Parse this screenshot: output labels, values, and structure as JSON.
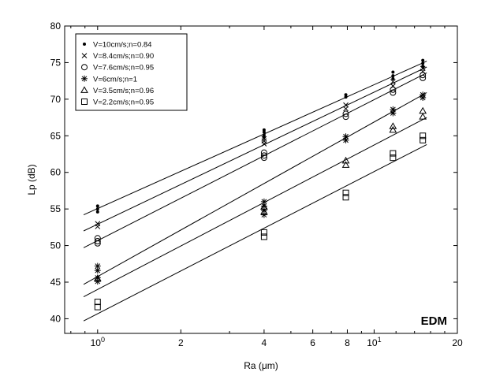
{
  "chart_data": {
    "type": "scatter",
    "title": "",
    "xlabel": "Ra (μm)",
    "ylabel": "Lp (dB)",
    "xscale": "log",
    "xlim": [
      0.76,
      20
    ],
    "ylim": [
      38,
      80
    ],
    "annotation": "EDM",
    "legend_position": "top-left",
    "x_ticks": [
      {
        "value": 1,
        "base": "10",
        "exp": "0"
      },
      {
        "value": 2,
        "label": "2"
      },
      {
        "value": 4,
        "label": "4"
      },
      {
        "value": 6,
        "label": "6"
      },
      {
        "value": 8,
        "label": "8"
      },
      {
        "value": 10,
        "base": "10",
        "exp": "1"
      },
      {
        "value": 20,
        "label": "20"
      }
    ],
    "y_ticks": [
      "40",
      "45",
      "50",
      "55",
      "60",
      "65",
      "70",
      "75",
      "80"
    ],
    "series": [
      {
        "name": "V=10cm/s;n=0.84",
        "marker": "dot",
        "fit": {
          "x": [
            0.89,
            15.5
          ],
          "y": [
            54.2,
            75.2
          ]
        },
        "points": [
          [
            1,
            55.0
          ],
          [
            1,
            55.4
          ],
          [
            1,
            54.6
          ],
          [
            4,
            65.1
          ],
          [
            4,
            65.5
          ],
          [
            4,
            65.8
          ],
          [
            4,
            64.8
          ],
          [
            7.9,
            70.6
          ],
          [
            7.9,
            70.3
          ],
          [
            11.7,
            73.7
          ],
          [
            11.7,
            73.2
          ],
          [
            11.7,
            72.8
          ],
          [
            15,
            75.3
          ],
          [
            15,
            74.9
          ],
          [
            15,
            74.5
          ]
        ]
      },
      {
        "name": "V=8.4cm/s;n=0.90",
        "marker": "x",
        "fit": {
          "x": [
            0.89,
            15.5
          ],
          "y": [
            52.0,
            74.4
          ]
        },
        "points": [
          [
            1,
            53.0
          ],
          [
            1,
            52.6
          ],
          [
            4,
            64.3
          ],
          [
            4,
            63.9
          ],
          [
            4,
            64.6
          ],
          [
            7.9,
            69.2
          ],
          [
            7.9,
            68.7
          ],
          [
            11.7,
            72.4
          ],
          [
            11.7,
            71.8
          ],
          [
            15,
            74.2
          ],
          [
            15,
            73.8
          ]
        ]
      },
      {
        "name": "V=7.6cm/s;n=0.95",
        "marker": "circle",
        "fit": {
          "x": [
            0.89,
            15.5
          ],
          "y": [
            49.7,
            73.6
          ]
        },
        "points": [
          [
            1,
            50.6
          ],
          [
            1,
            51.0
          ],
          [
            1,
            50.3
          ],
          [
            4,
            62.7
          ],
          [
            4,
            62.3
          ],
          [
            4,
            62.0
          ],
          [
            7.9,
            68.0
          ],
          [
            7.9,
            67.6
          ],
          [
            11.7,
            71.3
          ],
          [
            11.7,
            70.9
          ],
          [
            15,
            73.3
          ],
          [
            15,
            72.9
          ]
        ]
      },
      {
        "name": "V=6cm/s;n=1",
        "marker": "star",
        "fit": {
          "x": [
            0.89,
            15.5
          ],
          "y": [
            44.7,
            70.9
          ]
        },
        "points": [
          [
            1,
            47.2
          ],
          [
            1,
            46.6
          ],
          [
            1,
            45.6
          ],
          [
            1,
            45.1
          ],
          [
            4,
            56.0
          ],
          [
            4,
            55.4
          ],
          [
            4,
            54.8
          ],
          [
            4,
            54.2
          ],
          [
            7.9,
            64.9
          ],
          [
            7.9,
            64.4
          ],
          [
            11.7,
            68.6
          ],
          [
            11.7,
            68.1
          ],
          [
            15,
            70.6
          ],
          [
            15,
            70.2
          ]
        ]
      },
      {
        "name": "V=3.5cm/s;n=0.96",
        "marker": "triangle",
        "fit": {
          "x": [
            0.89,
            15.5
          ],
          "y": [
            43.0,
            67.5
          ]
        },
        "points": [
          [
            1,
            45.5
          ],
          [
            4,
            55.3
          ],
          [
            4,
            54.6
          ],
          [
            7.9,
            61.6
          ],
          [
            7.9,
            61.0
          ],
          [
            11.7,
            66.3
          ],
          [
            11.7,
            65.8
          ],
          [
            15,
            68.4
          ],
          [
            15,
            67.6
          ]
        ]
      },
      {
        "name": "V=2.2cm/s;n=0.95",
        "marker": "square",
        "fit": {
          "x": [
            0.89,
            15.5
          ],
          "y": [
            39.7,
            63.8
          ]
        },
        "points": [
          [
            1,
            42.3
          ],
          [
            1,
            41.6
          ],
          [
            4,
            51.8
          ],
          [
            4,
            51.2
          ],
          [
            7.9,
            57.2
          ],
          [
            7.9,
            56.6
          ],
          [
            11.7,
            62.6
          ],
          [
            11.7,
            62.0
          ],
          [
            15,
            65.0
          ],
          [
            15,
            64.4
          ]
        ]
      }
    ]
  }
}
